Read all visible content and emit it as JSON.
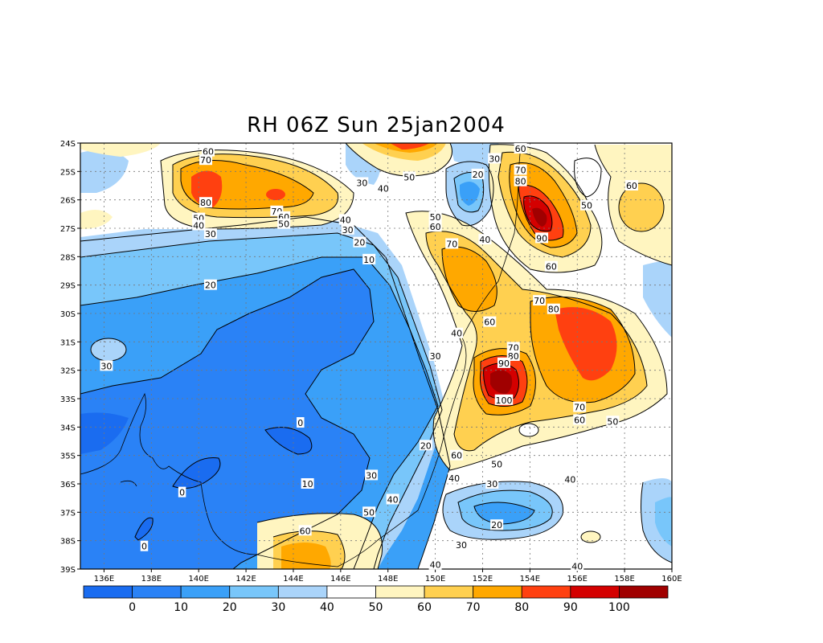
{
  "title": "RH 06Z Sun 25jan2004",
  "lat_ticks": [
    "24S",
    "25S",
    "26S",
    "27S",
    "28S",
    "29S",
    "30S",
    "31S",
    "32S",
    "33S",
    "34S",
    "35S",
    "36S",
    "37S",
    "38S",
    "39S"
  ],
  "lon_ticks": [
    "136E",
    "138E",
    "140E",
    "142E",
    "144E",
    "146E",
    "148E",
    "150E",
    "152E",
    "154E",
    "156E",
    "158E",
    "160E"
  ],
  "colorbar": {
    "colors": [
      "#1a6cf0",
      "#2a82f6",
      "#3aa0f8",
      "#78c6fa",
      "#aad4fa",
      "#ffffff",
      "#fff5c0",
      "#ffd050",
      "#ffa800",
      "#ff4010",
      "#d40000",
      "#a00000"
    ],
    "labels": [
      "0",
      "10",
      "20",
      "30",
      "40",
      "50",
      "60",
      "70",
      "80",
      "90",
      "100"
    ]
  },
  "contour_labels": [
    {
      "text": "60",
      "lon": 140.4,
      "lat": 24.3
    },
    {
      "text": "70",
      "lon": 140.3,
      "lat": 24.6
    },
    {
      "text": "80",
      "lon": 140.3,
      "lat": 26.1
    },
    {
      "text": "70",
      "lon": 143.3,
      "lat": 26.4
    },
    {
      "text": "60",
      "lon": 143.6,
      "lat": 26.6
    },
    {
      "text": "50",
      "lon": 143.6,
      "lat": 26.85
    },
    {
      "text": "50",
      "lon": 140,
      "lat": 26.65
    },
    {
      "text": "40",
      "lon": 140,
      "lat": 26.9
    },
    {
      "text": "30",
      "lon": 140.5,
      "lat": 27.2
    },
    {
      "text": "20",
      "lon": 140.5,
      "lat": 29
    },
    {
      "text": "40",
      "lon": 146.2,
      "lat": 26.7
    },
    {
      "text": "30",
      "lon": 146.3,
      "lat": 27.05
    },
    {
      "text": "20",
      "lon": 146.8,
      "lat": 27.5
    },
    {
      "text": "10",
      "lon": 147.2,
      "lat": 28.1
    },
    {
      "text": "30",
      "lon": 146.9,
      "lat": 25.4
    },
    {
      "text": "40",
      "lon": 147.8,
      "lat": 25.6
    },
    {
      "text": "50",
      "lon": 148.9,
      "lat": 25.2
    },
    {
      "text": "30",
      "lon": 152.5,
      "lat": 24.55
    },
    {
      "text": "20",
      "lon": 151.8,
      "lat": 25.1
    },
    {
      "text": "50",
      "lon": 150,
      "lat": 26.6
    },
    {
      "text": "60",
      "lon": 150,
      "lat": 26.95
    },
    {
      "text": "40",
      "lon": 152.1,
      "lat": 27.4
    },
    {
      "text": "70",
      "lon": 150.7,
      "lat": 27.55
    },
    {
      "text": "60",
      "lon": 153.6,
      "lat": 24.2
    },
    {
      "text": "70",
      "lon": 153.6,
      "lat": 24.95
    },
    {
      "text": "80",
      "lon": 153.6,
      "lat": 25.35
    },
    {
      "text": "90",
      "lon": 154.5,
      "lat": 27.35
    },
    {
      "text": "60",
      "lon": 154.9,
      "lat": 28.35
    },
    {
      "text": "50",
      "lon": 156.4,
      "lat": 26.2
    },
    {
      "text": "60",
      "lon": 158.3,
      "lat": 25.5
    },
    {
      "text": "60",
      "lon": 152.3,
      "lat": 30.3
    },
    {
      "text": "40",
      "lon": 150.9,
      "lat": 30.7
    },
    {
      "text": "30",
      "lon": 150,
      "lat": 31.5
    },
    {
      "text": "70",
      "lon": 154.4,
      "lat": 29.55
    },
    {
      "text": "80",
      "lon": 155,
      "lat": 29.85
    },
    {
      "text": "70",
      "lon": 153.3,
      "lat": 31.2
    },
    {
      "text": "80",
      "lon": 153.3,
      "lat": 31.5
    },
    {
      "text": "90",
      "lon": 152.9,
      "lat": 31.75
    },
    {
      "text": "100",
      "lon": 152.9,
      "lat": 33.05
    },
    {
      "text": "70",
      "lon": 156.1,
      "lat": 33.3
    },
    {
      "text": "60",
      "lon": 156.1,
      "lat": 33.75
    },
    {
      "text": "50",
      "lon": 157.5,
      "lat": 33.8
    },
    {
      "text": "60",
      "lon": 150.9,
      "lat": 35
    },
    {
      "text": "50",
      "lon": 152.6,
      "lat": 35.3
    },
    {
      "text": "30",
      "lon": 152.4,
      "lat": 36
    },
    {
      "text": "40",
      "lon": 150.8,
      "lat": 35.8
    },
    {
      "text": "40",
      "lon": 155.7,
      "lat": 35.85
    },
    {
      "text": "20",
      "lon": 149.6,
      "lat": 34.65
    },
    {
      "text": "30",
      "lon": 147.3,
      "lat": 35.7
    },
    {
      "text": "40",
      "lon": 148.2,
      "lat": 36.55
    },
    {
      "text": "50",
      "lon": 147.2,
      "lat": 37
    },
    {
      "text": "20",
      "lon": 152.6,
      "lat": 37.45
    },
    {
      "text": "30",
      "lon": 151.1,
      "lat": 38.15
    },
    {
      "text": "40",
      "lon": 150,
      "lat": 38.85
    },
    {
      "text": "40",
      "lon": 156,
      "lat": 38.9
    },
    {
      "text": "60",
      "lon": 144.5,
      "lat": 37.65
    },
    {
      "text": "10",
      "lon": 144.6,
      "lat": 36
    },
    {
      "text": "0",
      "lon": 144.3,
      "lat": 33.85
    },
    {
      "text": "0",
      "lon": 139.3,
      "lat": 36.3
    },
    {
      "text": "0",
      "lon": 137.7,
      "lat": 38.2
    },
    {
      "text": "30",
      "lon": 136.1,
      "lat": 31.85
    }
  ]
}
